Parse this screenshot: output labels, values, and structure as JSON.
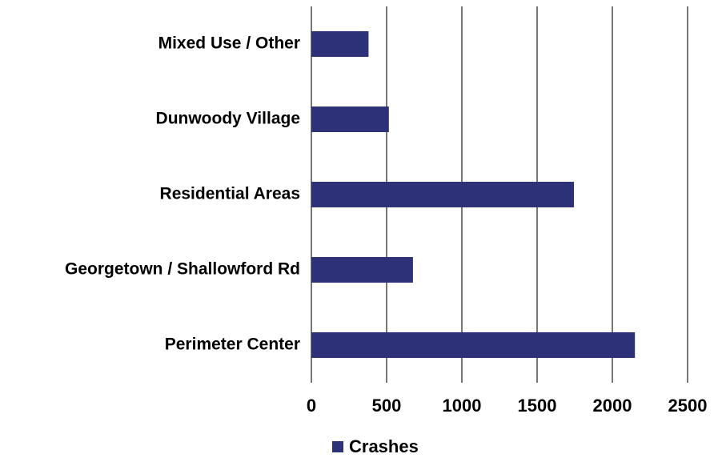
{
  "chart_data": {
    "type": "barh",
    "categories": [
      "Mixed Use / Other",
      "Dunwoody Village",
      "Residential Areas",
      "Georgetown / Shallowford Rd",
      "Perimeter Center"
    ],
    "series": [
      {
        "name": "Crashes",
        "color": "#2c3178",
        "values": [
          380,
          515,
          1745,
          675,
          2150
        ]
      }
    ],
    "xlim": [
      0,
      2500
    ],
    "xticks": [
      0,
      500,
      1000,
      1500,
      2000,
      2500
    ],
    "grid": true,
    "legend": "bottom"
  }
}
